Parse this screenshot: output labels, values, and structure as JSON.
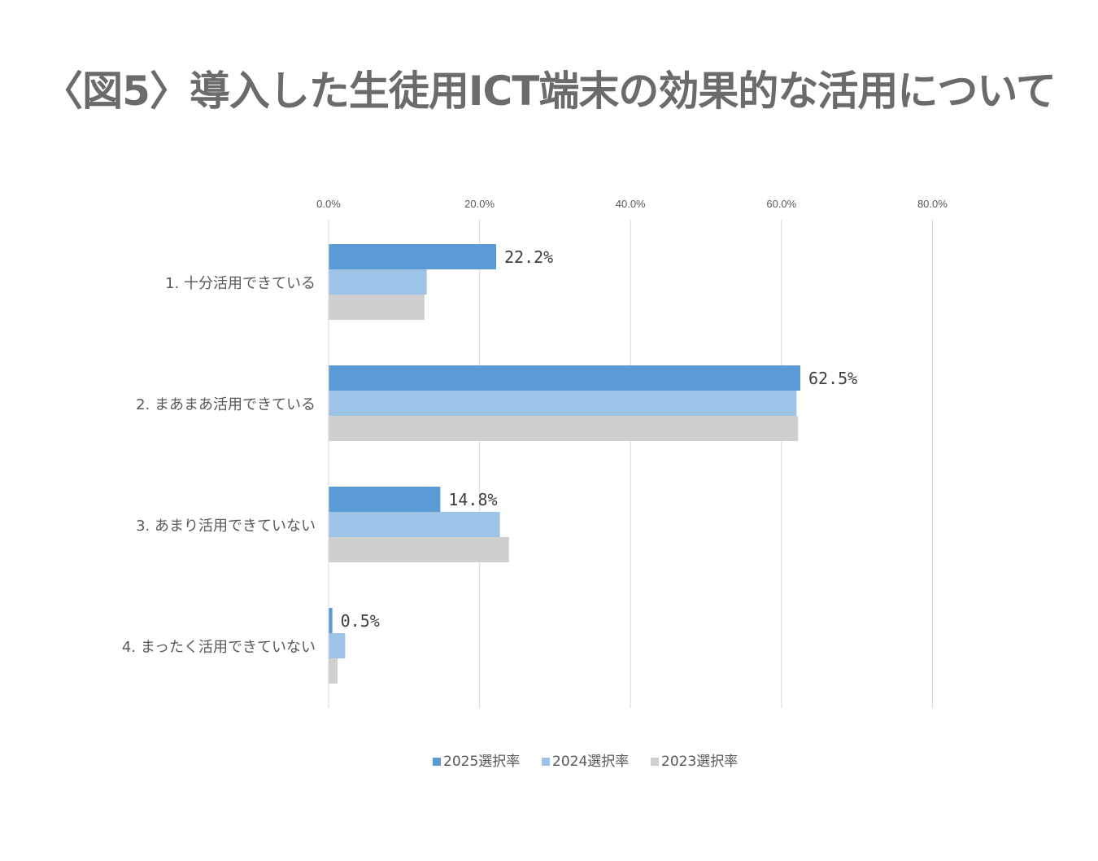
{
  "title": "〈図5〉導入した生徒用ICT端末の効果的な活用について",
  "chart_data": {
    "type": "bar",
    "orientation": "horizontal",
    "title": "〈図5〉導入した生徒用ICT端末の効果的な活用について",
    "categories": [
      "1.  十分活用できている",
      "2.  まあまあ活用できている",
      "3.  あまり活用できていない",
      "4.  まったく活用できていない"
    ],
    "series": [
      {
        "name": "2025選択率",
        "color": "#5b9bd5",
        "values": [
          22.2,
          62.5,
          14.8,
          0.5
        ],
        "labels": [
          "22.2%",
          "62.5%",
          "14.8%",
          "0.5%"
        ]
      },
      {
        "name": "2024選択率",
        "color": "#9dc3e6",
        "values": [
          13.0,
          62.0,
          22.7,
          2.2
        ]
      },
      {
        "name": "2023選択率",
        "color": "#d0cece",
        "values": [
          12.7,
          62.2,
          23.9,
          1.2
        ]
      }
    ],
    "xlim": [
      0,
      80
    ],
    "ticks": [
      "0.0%",
      "20.0%",
      "40.0%",
      "60.0%",
      "80.0%"
    ],
    "tick_values": [
      0,
      20,
      40,
      60,
      80
    ],
    "xaxis_position": "top",
    "grid": true,
    "legend_position": "bottom"
  }
}
